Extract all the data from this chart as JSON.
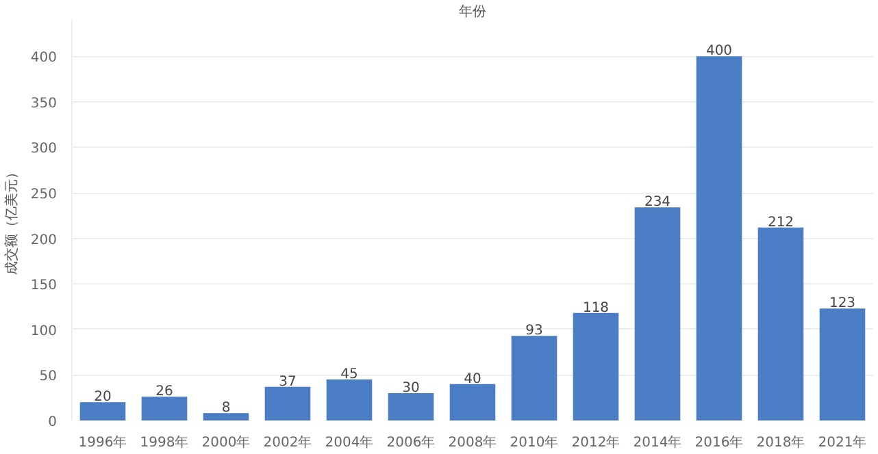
{
  "chart_data": {
    "type": "bar",
    "xlabel": "年份",
    "ylabel": "成交额（亿美元）",
    "categories": [
      "1996年",
      "1998年",
      "2000年",
      "2002年",
      "2004年",
      "2006年",
      "2008年",
      "2010年",
      "2012年",
      "2014年",
      "2016年",
      "2018年",
      "2021年"
    ],
    "values": [
      20,
      26,
      8,
      37,
      45,
      30,
      40,
      93,
      118,
      234,
      400,
      212,
      123
    ],
    "color": "#4a7dc4",
    "ylim": [
      0,
      440
    ],
    "yticks": [
      0,
      50,
      100,
      150,
      200,
      250,
      300,
      350,
      400
    ],
    "grid": "y",
    "data_labels": true
  }
}
